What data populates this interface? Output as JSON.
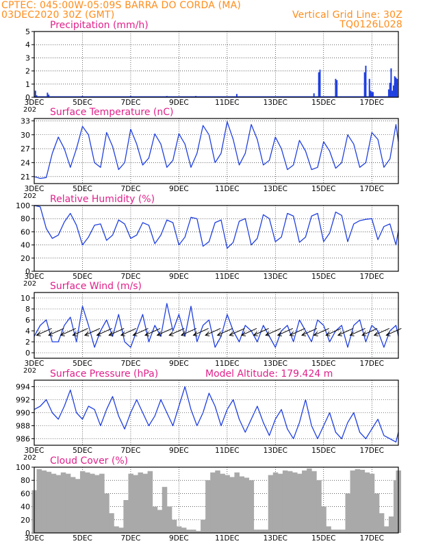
{
  "header": {
    "line1_left": "CPTEC:   045:00W-05:09S   BARRA DO CORDA (MA)",
    "line2_left": "03DEC2020 30Z (GMT)",
    "line2_right": "Vertical Grid Line: 30Z",
    "line3_right": "TQ0126L028"
  },
  "colors": {
    "header": "#ff8c1a",
    "title": "#e0208a",
    "line": "#1f3fe0",
    "cloud": "#a9a9a9",
    "grid": "#000000"
  },
  "x_axis": {
    "ticks": [
      3,
      5,
      7,
      9,
      11,
      13,
      15,
      17
    ],
    "tick_labels": [
      "3DEC",
      "5DEC",
      "7DEC",
      "9DEC",
      "11DEC",
      "13DEC",
      "15DEC",
      "17DEC"
    ],
    "range": [
      3,
      18.1
    ],
    "cut_label": "202"
  },
  "chart_data": [
    {
      "id": "precip",
      "type": "bar",
      "title": "Precipitation (mm/h)",
      "ylim": [
        0,
        5
      ],
      "yticks": [
        0,
        1,
        2,
        3,
        4,
        5
      ],
      "x": [
        3.05,
        3.1,
        3.55,
        3.6,
        5.0,
        7.0,
        8.5,
        9.7,
        11.4,
        14.6,
        14.8,
        14.85,
        15.5,
        15.55,
        16.7,
        16.75,
        16.9,
        16.95,
        17.0,
        17.05,
        17.7,
        17.75,
        17.8,
        17.85,
        17.9,
        17.95,
        18.0,
        18.05
      ],
      "values": [
        0.5,
        0.15,
        0.35,
        0.2,
        0.1,
        0.1,
        0.1,
        0.1,
        0.25,
        0.3,
        1.9,
        2.1,
        1.4,
        1.3,
        1.9,
        2.4,
        1.4,
        0.5,
        0.4,
        0.4,
        0.6,
        1.1,
        2.2,
        0.5,
        0.9,
        1.6,
        1.5,
        1.4
      ]
    },
    {
      "id": "temp",
      "type": "line",
      "title": "Surface Temperature (nC)",
      "ylim": [
        19.5,
        33.5
      ],
      "yticks": [
        21,
        24,
        27,
        30,
        33
      ],
      "x": [
        3.0,
        3.25,
        3.5,
        3.75,
        4.0,
        4.25,
        4.5,
        4.75,
        5.0,
        5.25,
        5.5,
        5.75,
        6.0,
        6.25,
        6.5,
        6.75,
        7.0,
        7.25,
        7.5,
        7.75,
        8.0,
        8.25,
        8.5,
        8.75,
        9.0,
        9.25,
        9.5,
        9.75,
        10.0,
        10.25,
        10.5,
        10.75,
        11.0,
        11.25,
        11.5,
        11.75,
        12.0,
        12.25,
        12.5,
        12.75,
        13.0,
        13.25,
        13.5,
        13.75,
        14.0,
        14.25,
        14.5,
        14.75,
        15.0,
        15.25,
        15.5,
        15.75,
        16.0,
        16.25,
        16.5,
        16.75,
        17.0,
        17.25,
        17.5,
        17.75,
        18.0,
        18.1
      ],
      "values": [
        21,
        20.6,
        20.8,
        26,
        29.5,
        27,
        23,
        27,
        31.8,
        30,
        24,
        23,
        30.5,
        27.5,
        22.5,
        24,
        31.2,
        28,
        23.5,
        25,
        30.2,
        28,
        23,
        24.5,
        30.2,
        28,
        23,
        26,
        32,
        30,
        24,
        26,
        32.8,
        29,
        23.5,
        26,
        32.2,
        29,
        23.5,
        24.5,
        29.5,
        27,
        22.5,
        23.5,
        28.8,
        26.5,
        22.5,
        23,
        28.5,
        26.5,
        22.8,
        24,
        30,
        28,
        23,
        24,
        30.5,
        29,
        23,
        24.8,
        32.2,
        28.5
      ]
    },
    {
      "id": "rh",
      "type": "line",
      "title": "Relative Humidity (%)",
      "ylim": [
        0,
        100
      ],
      "yticks": [
        0,
        20,
        40,
        60,
        80,
        100
      ],
      "x": [
        3.0,
        3.25,
        3.5,
        3.75,
        4.0,
        4.25,
        4.5,
        4.75,
        5.0,
        5.25,
        5.5,
        5.75,
        6.0,
        6.25,
        6.5,
        6.75,
        7.0,
        7.25,
        7.5,
        7.75,
        8.0,
        8.25,
        8.5,
        8.75,
        9.0,
        9.25,
        9.5,
        9.75,
        10.0,
        10.25,
        10.5,
        10.75,
        11.0,
        11.25,
        11.5,
        11.75,
        12.0,
        12.25,
        12.5,
        12.75,
        13.0,
        13.25,
        13.5,
        13.75,
        14.0,
        14.25,
        14.5,
        14.75,
        15.0,
        15.25,
        15.5,
        15.75,
        16.0,
        16.25,
        16.5,
        16.75,
        17.0,
        17.25,
        17.5,
        17.75,
        18.0,
        18.1
      ],
      "values": [
        100,
        98,
        65,
        50,
        55,
        75,
        88,
        70,
        40,
        52,
        70,
        72,
        47,
        55,
        78,
        72,
        50,
        55,
        74,
        70,
        42,
        55,
        78,
        74,
        40,
        52,
        82,
        80,
        38,
        45,
        74,
        78,
        35,
        44,
        76,
        80,
        40,
        50,
        86,
        80,
        45,
        52,
        88,
        84,
        44,
        52,
        84,
        88,
        45,
        58,
        90,
        85,
        45,
        72,
        77,
        79,
        80,
        48,
        68,
        72,
        40,
        62
      ]
    },
    {
      "id": "wind",
      "type": "line",
      "title": "Surface Wind (m/s)",
      "ylim": [
        -1,
        11
      ],
      "yticks": [
        0,
        2,
        4,
        6,
        8,
        10
      ],
      "x": [
        3.0,
        3.25,
        3.5,
        3.75,
        4.0,
        4.25,
        4.5,
        4.75,
        5.0,
        5.25,
        5.5,
        5.75,
        6.0,
        6.25,
        6.5,
        6.75,
        7.0,
        7.25,
        7.5,
        7.75,
        8.0,
        8.25,
        8.5,
        8.75,
        9.0,
        9.25,
        9.5,
        9.75,
        10.0,
        10.25,
        10.5,
        10.75,
        11.0,
        11.25,
        11.5,
        11.75,
        12.0,
        12.25,
        12.5,
        12.75,
        13.0,
        13.25,
        13.5,
        13.75,
        14.0,
        14.25,
        14.5,
        14.75,
        15.0,
        15.25,
        15.5,
        15.75,
        16.0,
        16.25,
        16.5,
        16.75,
        17.0,
        17.25,
        17.5,
        17.75,
        18.0,
        18.1
      ],
      "values": [
        3,
        5,
        6,
        2,
        2,
        5,
        6.5,
        2,
        8.5,
        5,
        1,
        4,
        6,
        3,
        7,
        2,
        1,
        4,
        7,
        2,
        5,
        3,
        9,
        4,
        7,
        3,
        8.5,
        2,
        5,
        6,
        1,
        3,
        7,
        4,
        2,
        5,
        4,
        2,
        5,
        3,
        1,
        4,
        5,
        2,
        6,
        4,
        2,
        6,
        5,
        2,
        4,
        5,
        1,
        5,
        6,
        2,
        5,
        4,
        1,
        4,
        5,
        3
      ]
    },
    {
      "id": "pressure",
      "type": "line",
      "title": "Surface Pressure (hPa)",
      "annotation": "Model Altitude: 179.424 m",
      "ylim": [
        985,
        995
      ],
      "yticks": [
        986,
        988,
        990,
        992,
        994
      ],
      "x": [
        3.0,
        3.25,
        3.5,
        3.75,
        4.0,
        4.25,
        4.5,
        4.75,
        5.0,
        5.25,
        5.5,
        5.75,
        6.0,
        6.25,
        6.5,
        6.75,
        7.0,
        7.25,
        7.5,
        7.75,
        8.0,
        8.25,
        8.5,
        8.75,
        9.0,
        9.25,
        9.5,
        9.75,
        10.0,
        10.25,
        10.5,
        10.75,
        11.0,
        11.25,
        11.5,
        11.75,
        12.0,
        12.25,
        12.5,
        12.75,
        13.0,
        13.25,
        13.5,
        13.75,
        14.0,
        14.25,
        14.5,
        14.75,
        15.0,
        15.25,
        15.5,
        15.75,
        16.0,
        16.25,
        16.5,
        16.75,
        17.0,
        17.25,
        17.5,
        17.75,
        18.0,
        18.1
      ],
      "values": [
        990.5,
        991,
        992,
        990,
        989,
        991,
        993.5,
        990,
        989,
        991,
        990.5,
        988,
        990.5,
        992.5,
        989.5,
        987.5,
        990,
        992,
        990,
        988,
        989.5,
        992,
        990,
        988,
        991,
        994,
        990.5,
        988,
        990,
        993,
        991,
        988,
        990.5,
        992,
        989,
        987,
        989,
        991,
        988.5,
        986.5,
        989,
        990.5,
        987.5,
        986,
        988.5,
        992,
        988,
        986,
        988,
        990,
        987,
        986,
        988.5,
        990,
        987,
        986,
        987.5,
        989,
        986.5,
        986,
        985.5,
        987
      ]
    },
    {
      "id": "cloud",
      "type": "area",
      "title": "Cloud Cover (%)",
      "ylim": [
        0,
        100
      ],
      "yticks": [
        0,
        20,
        40,
        60,
        80,
        100
      ],
      "x": [
        3.0,
        3.2,
        3.4,
        3.6,
        3.8,
        4.0,
        4.2,
        4.4,
        4.6,
        4.8,
        5.0,
        5.2,
        5.4,
        5.6,
        5.8,
        6.0,
        6.2,
        6.4,
        6.6,
        6.8,
        7.0,
        7.2,
        7.4,
        7.6,
        7.8,
        8.0,
        8.2,
        8.4,
        8.6,
        8.8,
        9.0,
        9.2,
        9.4,
        9.6,
        9.8,
        10.0,
        10.2,
        10.4,
        10.6,
        10.8,
        11.0,
        11.2,
        11.4,
        11.6,
        11.8,
        12.0,
        12.2,
        12.4,
        12.6,
        12.8,
        13.0,
        13.2,
        13.4,
        13.6,
        13.8,
        14.0,
        14.2,
        14.4,
        14.6,
        14.8,
        15.0,
        15.2,
        15.4,
        15.6,
        15.8,
        16.0,
        16.2,
        16.4,
        16.6,
        16.8,
        17.0,
        17.2,
        17.4,
        17.6,
        17.8,
        18.0,
        18.1
      ],
      "values": [
        65,
        97,
        95,
        93,
        90,
        88,
        92,
        90,
        85,
        82,
        94,
        92,
        90,
        88,
        90,
        60,
        30,
        10,
        8,
        50,
        90,
        88,
        92,
        90,
        94,
        40,
        35,
        70,
        40,
        20,
        10,
        8,
        5,
        5,
        3,
        20,
        80,
        92,
        95,
        90,
        88,
        85,
        92,
        86,
        84,
        80,
        5,
        5,
        5,
        88,
        92,
        90,
        95,
        94,
        92,
        90,
        95,
        98,
        94,
        80,
        40,
        10,
        5,
        5,
        5,
        60,
        95,
        97,
        96,
        92,
        90,
        60,
        30,
        10,
        25,
        80,
        95
      ]
    }
  ]
}
